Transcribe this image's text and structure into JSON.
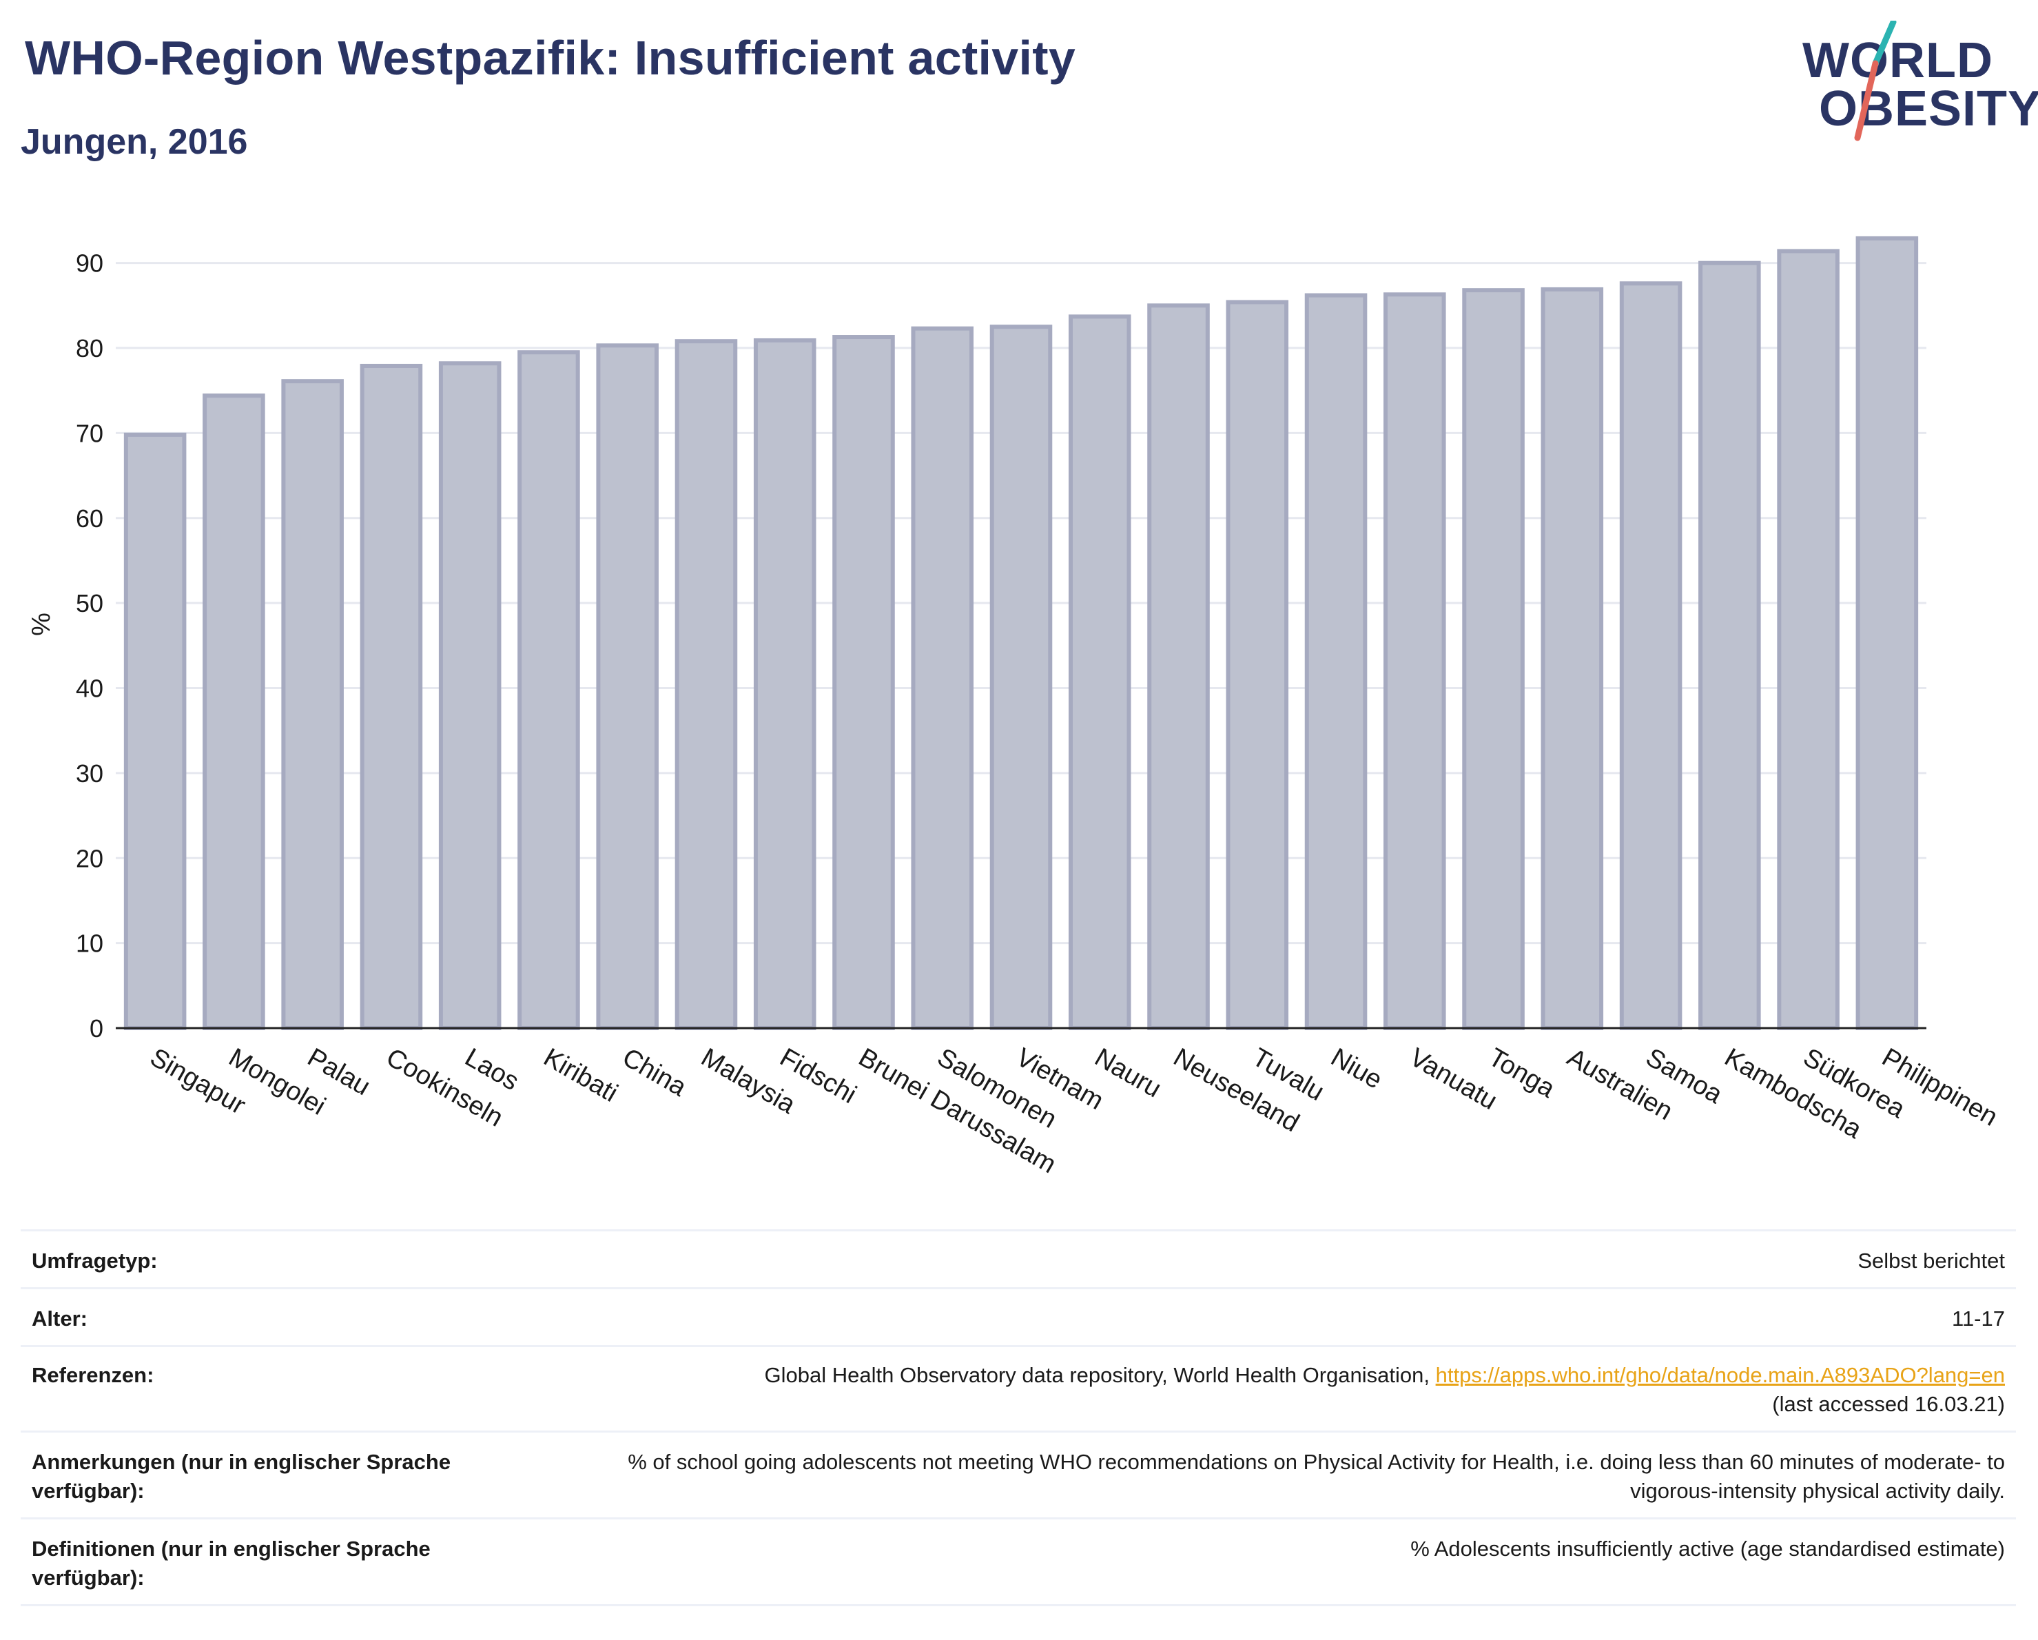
{
  "title": "WHO-Region Westpazifik: Insufficient activity",
  "subtitle": "Jungen, 2016",
  "logo": {
    "line1": "WORLD",
    "line2": "OBESITY",
    "accent_teal": "#2bb3b1",
    "accent_red": "#e2665a"
  },
  "colors": {
    "bar_fill": "#bdc1cf",
    "bar_stroke": "#a6aac0",
    "grid": "#e6e8ef",
    "title": "#2a3463"
  },
  "chart_data": {
    "type": "bar",
    "ylabel": "%",
    "ylim": [
      0,
      95
    ],
    "yticks": [
      0,
      10,
      20,
      30,
      40,
      50,
      60,
      70,
      80,
      90
    ],
    "categories": [
      "Singapur",
      "Mongolei",
      "Palau",
      "Cookinseln",
      "Laos",
      "Kiribati",
      "China",
      "Malaysia",
      "Fidschi",
      "Brunei Darussalam",
      "Salomonen",
      "Vietnam",
      "Nauru",
      "Neuseeland",
      "Tuvalu",
      "Niue",
      "Vanuatu",
      "Tonga",
      "Australien",
      "Samoa",
      "Kambodscha",
      "Südkorea",
      "Philippinen"
    ],
    "values": [
      69.8,
      74.4,
      76.1,
      77.9,
      78.2,
      79.5,
      80.3,
      80.8,
      80.9,
      81.3,
      82.3,
      82.5,
      83.7,
      85.0,
      85.4,
      86.2,
      86.3,
      86.8,
      86.9,
      87.6,
      90.0,
      91.4,
      92.9
    ],
    "grid": true
  },
  "info": [
    {
      "label": "Umfragetyp:",
      "value": "Selbst berichtet"
    },
    {
      "label": "Alter:",
      "value": "11-17"
    },
    {
      "label": "Referenzen:",
      "value_prefix": "Global Health Observatory data repository, World Health Organisation, ",
      "link": "https://apps.who.int/gho/data/node.main.A893ADO?lang=en",
      "value_suffix": "(last accessed 16.03.21)"
    },
    {
      "label": "Anmerkungen (nur in englischer Sprache verfügbar):",
      "value": "% of school going adolescents not meeting WHO recommendations on Physical Activity for Health, i.e. doing less than 60 minutes of moderate- to vigorous-intensity physical activity daily."
    },
    {
      "label": "Definitionen (nur in englischer Sprache verfügbar):",
      "value": "% Adolescents insufficiently active (age standardised estimate)"
    }
  ]
}
